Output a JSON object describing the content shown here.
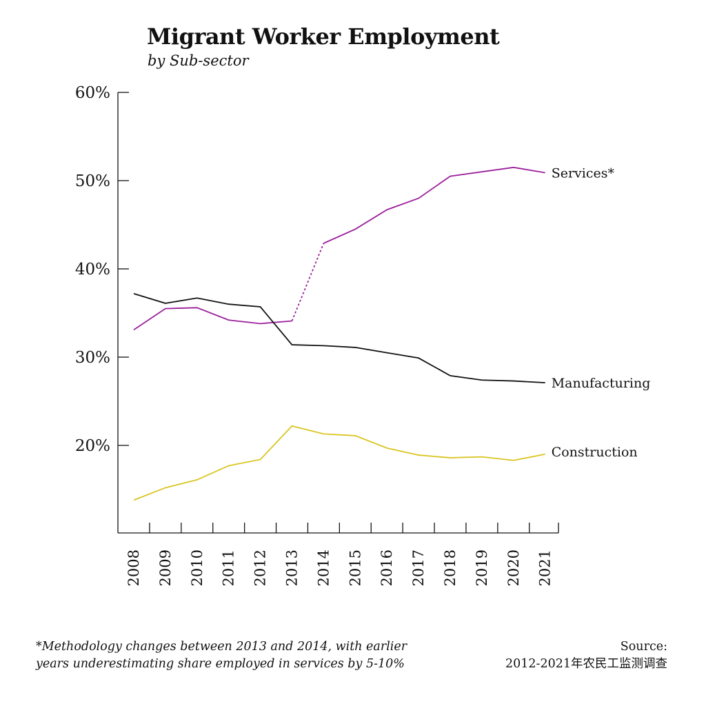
{
  "title": "Migrant Worker Employment",
  "subtitle": "by Sub-sector",
  "footnote": {
    "line1": "*Methodology changes between 2013 and 2014, with earlier",
    "line2": "years underestimating share employed in services by 5-10%"
  },
  "source": {
    "label": "Source:",
    "text": "2012-2021年农民工监测调查"
  },
  "chart_data": {
    "type": "line",
    "x": [
      2008,
      2009,
      2010,
      2011,
      2012,
      2013,
      2014,
      2015,
      2016,
      2017,
      2018,
      2019,
      2020,
      2021
    ],
    "x_tick_labels": [
      "2008",
      "2009",
      "2010",
      "2011",
      "2012",
      "2013",
      "2014",
      "2015",
      "2016",
      "2017",
      "2018",
      "2019",
      "2020",
      "2021"
    ],
    "ylim": [
      10,
      60
    ],
    "y_ticks": [
      20,
      30,
      40,
      50,
      60
    ],
    "y_tick_labels": [
      "20%",
      "30%",
      "40%",
      "50%",
      "60%"
    ],
    "grid": false,
    "dashed_segment": [
      2013,
      2014
    ],
    "series": [
      {
        "name": "Services*",
        "color": "#9b1f9b",
        "values": [
          33.1,
          35.5,
          35.6,
          34.2,
          33.8,
          34.1,
          42.9,
          44.5,
          46.7,
          48.0,
          50.5,
          51.0,
          51.5,
          50.9
        ]
      },
      {
        "name": "Manufacturing",
        "color": "#111111",
        "values": [
          37.2,
          36.1,
          36.7,
          36.0,
          35.7,
          31.4,
          31.3,
          31.1,
          30.5,
          29.9,
          27.9,
          27.4,
          27.3,
          27.1
        ]
      },
      {
        "name": "Construction",
        "color": "#d9c51f",
        "values": [
          13.8,
          15.2,
          16.1,
          17.7,
          18.4,
          22.2,
          21.3,
          21.1,
          19.7,
          18.9,
          18.6,
          18.7,
          18.3,
          19.0
        ]
      }
    ]
  }
}
